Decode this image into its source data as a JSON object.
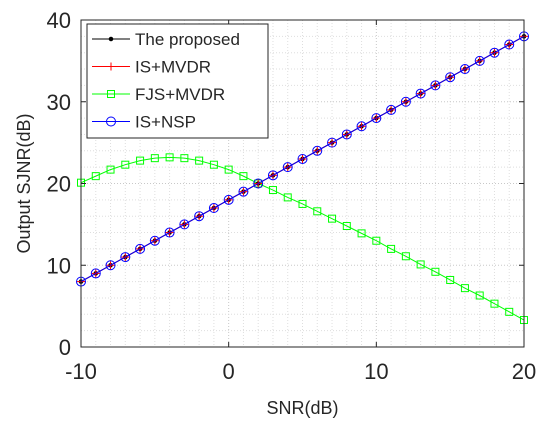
{
  "chart_data": {
    "type": "line",
    "xlabel": "SNR(dB)",
    "ylabel": "Output SJNR(dB)",
    "xlim": [
      -10,
      20
    ],
    "ylim": [
      0,
      40
    ],
    "xticks": [
      -10,
      0,
      10,
      20
    ],
    "yticks": [
      0,
      10,
      20,
      30,
      40
    ],
    "grid": true,
    "legend_position": "top-left",
    "x": [
      -10,
      -9,
      -8,
      -7,
      -6,
      -5,
      -4,
      -3,
      -2,
      -1,
      0,
      1,
      2,
      3,
      4,
      5,
      6,
      7,
      8,
      9,
      10,
      11,
      12,
      13,
      14,
      15,
      16,
      17,
      18,
      19,
      20
    ],
    "series": [
      {
        "name": "The proposed",
        "color": "#000000",
        "marker": "dot",
        "values": [
          8,
          9,
          10,
          11,
          12,
          13,
          14,
          15,
          16,
          17,
          18,
          19,
          20,
          21,
          22,
          23,
          24,
          25,
          26,
          27,
          28,
          29,
          30,
          31,
          32,
          33,
          34,
          35,
          36,
          37,
          38
        ]
      },
      {
        "name": "IS+MVDR",
        "color": "#ff0000",
        "marker": "plus",
        "values": [
          8,
          9,
          10,
          11,
          12,
          13,
          14,
          15,
          16,
          17,
          18,
          19,
          20,
          21,
          22,
          23,
          24,
          25,
          26,
          27,
          28,
          29,
          30,
          31,
          32,
          33,
          34,
          35,
          36,
          37,
          38
        ]
      },
      {
        "name": "FJS+MVDR",
        "color": "#00ff00",
        "marker": "square",
        "values": [
          20.1,
          20.9,
          21.7,
          22.3,
          22.8,
          23.1,
          23.2,
          23.1,
          22.8,
          22.3,
          21.7,
          20.9,
          20.0,
          19.2,
          18.3,
          17.5,
          16.6,
          15.7,
          14.8,
          13.9,
          13.0,
          12.0,
          11.1,
          10.1,
          9.2,
          8.2,
          7.2,
          6.3,
          5.3,
          4.3,
          3.3
        ]
      },
      {
        "name": "IS+NSP",
        "color": "#0000ff",
        "marker": "circle",
        "values": [
          8,
          9,
          10,
          11,
          12,
          13,
          14,
          15,
          16,
          17,
          18,
          19,
          20,
          21,
          22,
          23,
          24,
          25,
          26,
          27,
          28,
          29,
          30,
          31,
          32,
          33,
          34,
          35,
          36,
          37,
          38
        ]
      }
    ]
  }
}
